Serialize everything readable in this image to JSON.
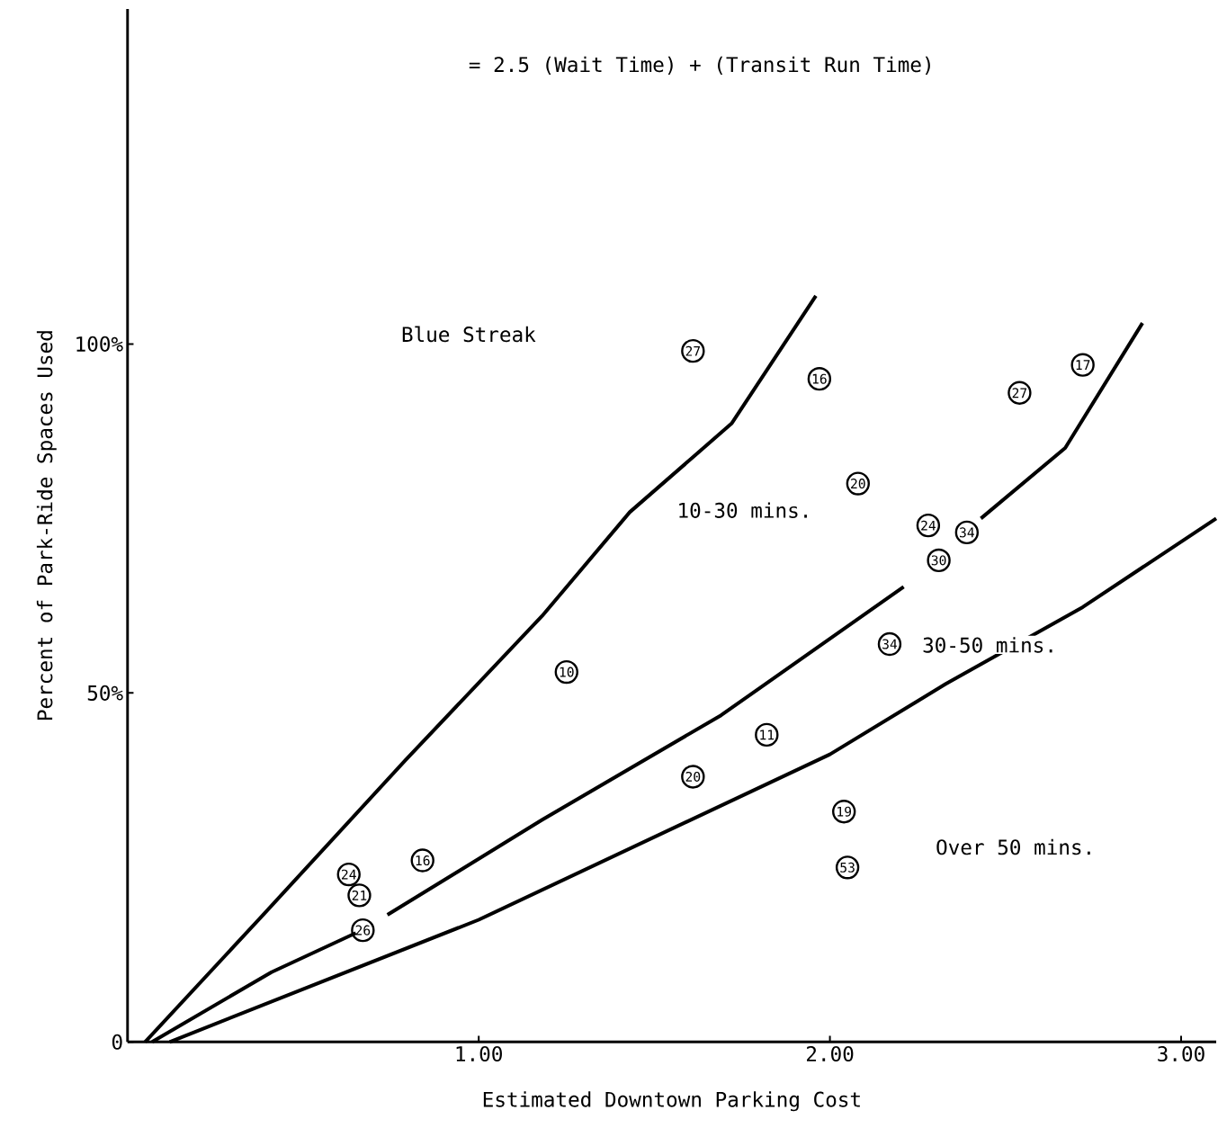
{
  "chart_data": {
    "type": "scatter",
    "xlabel": "Estimated Downtown Parking Cost",
    "ylabel": "Percent of Park-Ride Spaces Used",
    "xlim": [
      0,
      3.1
    ],
    "ylim": [
      0,
      148
    ],
    "xticks": [
      {
        "value": 1,
        "label": "1.00"
      },
      {
        "value": 2,
        "label": "2.00"
      },
      {
        "value": 3,
        "label": "3.00"
      }
    ],
    "yticks": [
      0,
      {
        "value": 50,
        "label": "50%"
      },
      {
        "value": 100,
        "label": "100%"
      }
    ],
    "marker": "circle",
    "series": [
      {
        "color": "#000000",
        "x": [
          1.61,
          1.97,
          2.54,
          2.72,
          2.08,
          2.28,
          2.39,
          2.31,
          2.17,
          1.25,
          1.82,
          1.61,
          2.04,
          2.05,
          0.84,
          0.63,
          0.66,
          0.67
        ],
        "values": [
          99,
          95,
          93,
          97,
          80,
          74,
          73,
          69,
          57,
          53,
          44,
          38,
          33,
          25,
          26,
          24,
          21,
          16
        ]
      },
      {
        "type": "line",
        "marker": "none",
        "color": "#000000",
        "x": [
          0.05,
          0.41,
          0.79,
          1.18,
          1.43,
          1.72,
          1.96
        ],
        "values": [
          0,
          19.5,
          40.3,
          61.0,
          75.9,
          88.6,
          106.9
        ]
      },
      {
        "type": "line",
        "marker": "none",
        "color": "#000000",
        "x": [
          0.07,
          0.41,
          0.65,
          0.7,
          0.74,
          1.18,
          1.69,
          2.21,
          2.32,
          2.43,
          2.67,
          2.89
        ],
        "values": [
          0,
          10,
          15.6,
          null,
          18.2,
          31.8,
          46.8,
          65.2,
          null,
          75,
          85.1,
          103
        ]
      },
      {
        "type": "line",
        "marker": "none",
        "color": "#000000",
        "x": [
          0.12,
          1.0,
          2.0,
          2.33,
          2.72,
          3.1
        ],
        "values": [
          0,
          17.5,
          41.2,
          51.3,
          62.3,
          75
        ]
      }
    ],
    "annotations": [
      "= 2.5 (Wait Time) + (Transit Run Time)",
      "Blue Streak",
      "10-30 mins.",
      "30-50 mins.",
      "Over 50 mins.",
      {
        "text": "27",
        "x": 1.61,
        "y": 99
      },
      {
        "text": "16",
        "x": 1.97,
        "y": 95
      },
      {
        "text": "27",
        "x": 2.54,
        "y": 93
      },
      {
        "text": "17",
        "x": 2.72,
        "y": 97
      },
      {
        "text": "20",
        "x": 2.08,
        "y": 80
      },
      {
        "text": "24",
        "x": 2.28,
        "y": 74
      },
      {
        "text": "34",
        "x": 2.39,
        "y": 73
      },
      {
        "text": "30",
        "x": 2.31,
        "y": 69
      },
      {
        "text": "34",
        "x": 2.17,
        "y": 57
      },
      {
        "text": "10",
        "x": 1.25,
        "y": 53
      },
      {
        "text": "11",
        "x": 1.82,
        "y": 44
      },
      {
        "text": "20",
        "x": 1.61,
        "y": 38
      },
      {
        "text": "19",
        "x": 2.04,
        "y": 33
      },
      {
        "text": "53",
        "x": 2.05,
        "y": 25
      },
      {
        "text": "16",
        "x": 0.84,
        "y": 26
      },
      {
        "text": "24",
        "x": 0.63,
        "y": 24
      },
      {
        "text": "21",
        "x": 0.66,
        "y": 21
      },
      {
        "text": "26",
        "x": 0.67,
        "y": 16
      }
    ]
  }
}
